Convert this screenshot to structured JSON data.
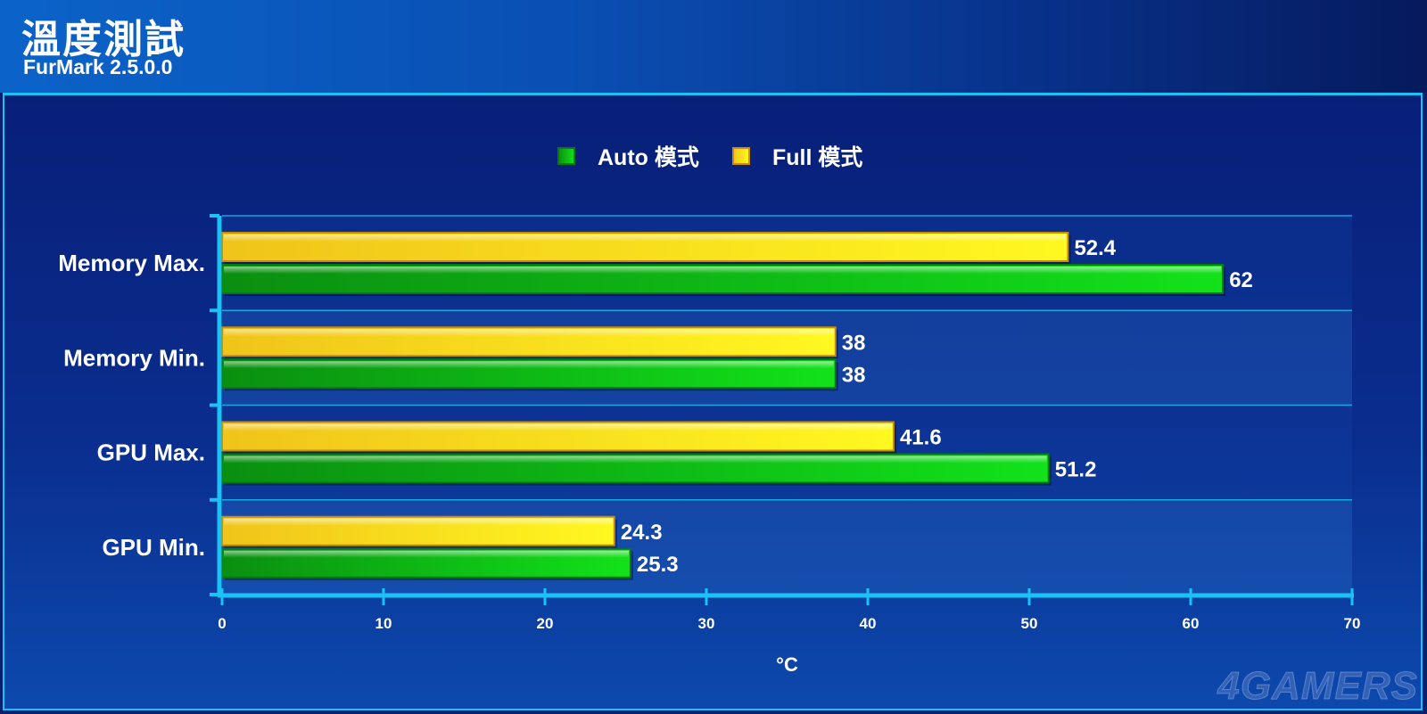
{
  "header": {
    "title": "溫度測試",
    "subtitle": "FurMark 2.5.0.0"
  },
  "watermark": "4GAMERS",
  "colors": {
    "auto": "#1fd41f",
    "full": "#ffe81a",
    "axis": "#19c3f5"
  },
  "chart_data": {
    "type": "bar",
    "orientation": "horizontal",
    "categories": [
      "Memory Max.",
      "Memory Min.",
      "GPU Max.",
      "GPU Min."
    ],
    "series": [
      {
        "name": "Full 模式",
        "values": [
          52.4,
          38,
          41.6,
          24.3
        ]
      },
      {
        "name": "Auto 模式",
        "values": [
          62,
          38,
          51.2,
          25.3
        ]
      }
    ],
    "legend_order": [
      "Auto 模式",
      "Full 模式"
    ],
    "xlabel": "°C",
    "xlim": [
      0,
      70
    ],
    "xticks": [
      "0",
      "10",
      "20",
      "30",
      "40",
      "50",
      "60",
      "70"
    ],
    "legend_position": "top-center",
    "grid": false
  }
}
